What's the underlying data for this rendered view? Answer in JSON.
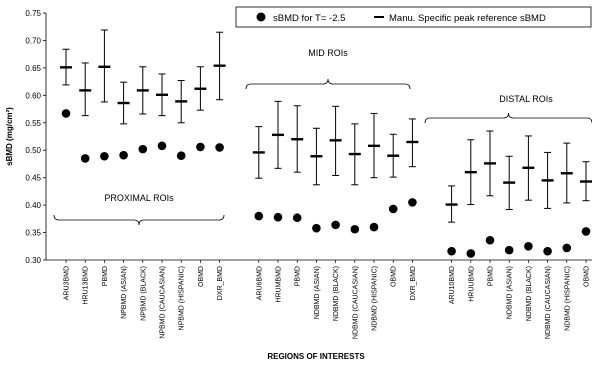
{
  "chart_data": {
    "type": "scatter",
    "xlabel": "REGIONS OF INTERESTS",
    "ylabel": "sBMD (mg/cm²)",
    "ylim": [
      0.3,
      0.75
    ],
    "yticks": [
      "0.30",
      "0.35",
      "0.40",
      "0.45",
      "0.50",
      "0.55",
      "0.60",
      "0.65",
      "0.70",
      "0.75"
    ],
    "grid": false,
    "legend_position": "top-right",
    "categories": [
      "ARU3BMD",
      "HRU13BMD",
      "PBMD",
      "NPBMD (ASIAN)",
      "NPBMD (BLACK)",
      "NPBMD (CAUCASIAN)",
      "NPBMD (HISPANIC)",
      "OBMD",
      "DXR_BMD",
      "ARU6BMD",
      "HRUMBMD",
      "PBMD",
      "NDBMD (ASIAN)",
      "NDBMD (BLACK)",
      "NDBMD (CAUCASIAN)",
      "NDBMD (HISPANIC)",
      "OBMD",
      "DXR_BMD",
      "ARU10BMD",
      "HRUUBMD",
      "PBMD",
      "NDBMD (ASIAN)",
      "NDBMD (BLACK)",
      "NDBMD (CAUCASIAN)",
      "NDBMD (HISPANIC)",
      "OBMD",
      "DXR_BMD"
    ],
    "groups": [
      {
        "label": "PROXIMAL ROIs",
        "start": 0,
        "end": 8
      },
      {
        "label": "MID ROIs",
        "start": 9,
        "end": 17
      },
      {
        "label": "DISTAL ROIs",
        "start": 18,
        "end": 26
      }
    ],
    "series": [
      {
        "name": "sBMD for T= -2.5",
        "marker": "circle",
        "values": [
          0.567,
          0.485,
          0.489,
          0.491,
          0.502,
          0.508,
          0.49,
          0.506,
          0.505,
          0.38,
          0.378,
          0.377,
          0.358,
          0.364,
          0.356,
          0.36,
          0.393,
          0.405,
          0.316,
          0.312,
          0.336,
          0.318,
          0.325,
          0.316,
          0.322,
          0.352,
          0.368
        ]
      },
      {
        "name": "Manu. Specific peak reference sBMD",
        "marker": "dash",
        "values": [
          0.651,
          0.609,
          0.652,
          0.586,
          0.609,
          0.601,
          0.589,
          0.612,
          0.654,
          0.496,
          0.528,
          0.52,
          0.489,
          0.518,
          0.493,
          0.508,
          0.49,
          0.515,
          0.401,
          0.46,
          0.476,
          0.441,
          0.468,
          0.445,
          0.458,
          0.443,
          0.46
        ],
        "err_low": [
          0.619,
          0.563,
          0.588,
          0.548,
          0.566,
          0.563,
          0.55,
          0.573,
          0.592,
          0.449,
          0.467,
          0.46,
          0.437,
          0.454,
          0.437,
          0.45,
          0.451,
          0.47,
          0.369,
          0.401,
          0.417,
          0.392,
          0.409,
          0.394,
          0.404,
          0.408,
          0.42
        ],
        "err_high": [
          0.684,
          0.659,
          0.719,
          0.624,
          0.652,
          0.639,
          0.627,
          0.652,
          0.715,
          0.543,
          0.589,
          0.581,
          0.54,
          0.58,
          0.548,
          0.567,
          0.529,
          0.557,
          0.435,
          0.519,
          0.535,
          0.489,
          0.526,
          0.496,
          0.513,
          0.479,
          0.5
        ]
      }
    ]
  }
}
